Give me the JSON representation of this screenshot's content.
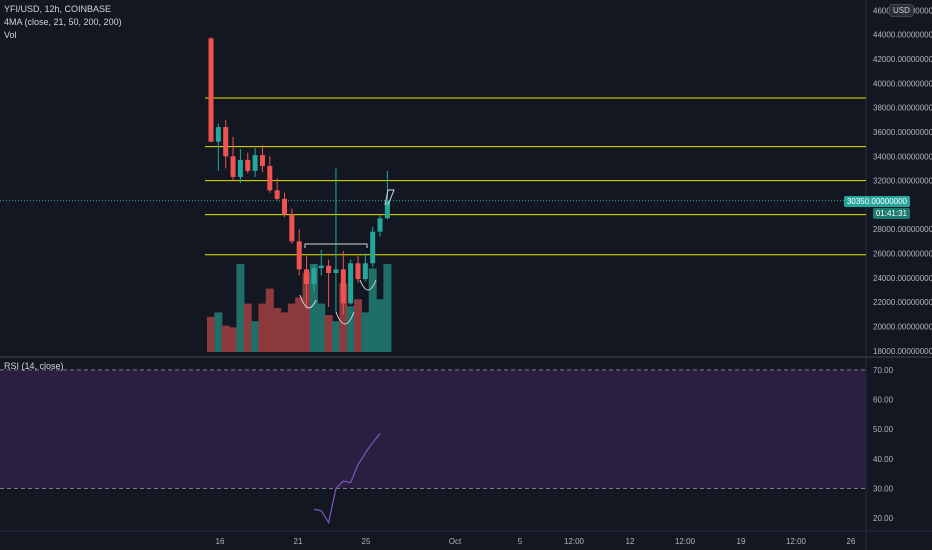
{
  "legend": {
    "symbol": "YFI/USD, 12h, COINBASE",
    "ma": "4MA (close, 21, 50, 200, 200)",
    "vol": "Vol"
  },
  "rsi_legend": "RSI (14, close)",
  "currency": "USD",
  "price_axis": {
    "ticks": [
      "46000.00000000",
      "44000.00000000",
      "42000.00000000",
      "40000.00000000",
      "38000.00000000",
      "36000.00000000",
      "34000.00000000",
      "32000.00000000",
      "28000.00000000",
      "26000.00000000",
      "24000.00000000",
      "22000.00000000",
      "20000.00000000",
      "18000.00000000"
    ],
    "tick_values": [
      46000,
      44000,
      42000,
      40000,
      38000,
      36000,
      34000,
      32000,
      28000,
      26000,
      24000,
      22000,
      20000,
      18000
    ],
    "range": [
      17900,
      46200
    ],
    "last_price": "30350.00000000",
    "last_value": 30350,
    "countdown": "01:41:31"
  },
  "rsi_axis": {
    "ticks": [
      "70.00",
      "60.00",
      "50.00",
      "40.00",
      "30.00",
      "20.00"
    ],
    "tick_values": [
      70,
      60,
      50,
      40,
      30,
      20
    ],
    "range": [
      16,
      72
    ],
    "upper": 70,
    "lower": 30
  },
  "time_axis": [
    "16",
    "21",
    "25",
    "Oct",
    "5",
    "12:00",
    "12",
    "12:00",
    "19",
    "12:00",
    "26"
  ],
  "horizontal_levels": [
    38800,
    34800,
    32000,
    29200,
    25900
  ],
  "colors": {
    "background": "#131722",
    "up": "#26a69a",
    "down": "#ef5350",
    "level": "#e6e600",
    "rsi_line": "#7e57c2",
    "rsi_band": "#2a1f3e",
    "last_price_tag": "#26a69a"
  },
  "chart_data": {
    "type": "candlestick",
    "candles": [
      {
        "o": 43700,
        "h": 43800,
        "l": 35200,
        "c": 35200,
        "v": 0.4
      },
      {
        "o": 35200,
        "h": 36700,
        "l": 32800,
        "c": 36400,
        "v": 0.45
      },
      {
        "o": 36400,
        "h": 37000,
        "l": 33000,
        "c": 34000,
        "v": 0.3
      },
      {
        "o": 34000,
        "h": 35600,
        "l": 32000,
        "c": 32300,
        "v": 0.28
      },
      {
        "o": 32300,
        "h": 34600,
        "l": 31800,
        "c": 33700,
        "v": 1.0
      },
      {
        "o": 33700,
        "h": 34300,
        "l": 32600,
        "c": 32800,
        "v": 0.55
      },
      {
        "o": 32800,
        "h": 34700,
        "l": 32300,
        "c": 34100,
        "v": 0.35
      },
      {
        "o": 34100,
        "h": 34900,
        "l": 32700,
        "c": 33200,
        "v": 0.55
      },
      {
        "o": 33200,
        "h": 34000,
        "l": 31000,
        "c": 31200,
        "v": 0.72
      },
      {
        "o": 31200,
        "h": 32200,
        "l": 30400,
        "c": 30500,
        "v": 0.5
      },
      {
        "o": 30500,
        "h": 31000,
        "l": 29000,
        "c": 29200,
        "v": 0.45
      },
      {
        "o": 29200,
        "h": 29700,
        "l": 26800,
        "c": 27000,
        "v": 0.55
      },
      {
        "o": 27000,
        "h": 28000,
        "l": 24200,
        "c": 24700,
        "v": 0.62
      },
      {
        "o": 24700,
        "h": 25800,
        "l": 21500,
        "c": 23500,
        "v": 0.9
      },
      {
        "o": 23500,
        "h": 25100,
        "l": 22800,
        "c": 24800,
        "v": 1.0
      },
      {
        "o": 24800,
        "h": 26300,
        "l": 24200,
        "c": 25000,
        "v": 0.55
      },
      {
        "o": 25000,
        "h": 25500,
        "l": 21600,
        "c": 24400,
        "v": 0.42
      },
      {
        "o": 24400,
        "h": 33000,
        "l": 21200,
        "c": 24700,
        "v": 0.35
      },
      {
        "o": 24700,
        "h": 26200,
        "l": 21000,
        "c": 21900,
        "v": 0.78
      },
      {
        "o": 21900,
        "h": 25500,
        "l": 21800,
        "c": 25200,
        "v": 0.52
      },
      {
        "o": 25200,
        "h": 25800,
        "l": 23600,
        "c": 23900,
        "v": 0.6
      },
      {
        "o": 23900,
        "h": 26000,
        "l": 23700,
        "c": 25200,
        "v": 0.45
      },
      {
        "o": 25200,
        "h": 28200,
        "l": 24900,
        "c": 27800,
        "v": 0.95
      },
      {
        "o": 27800,
        "h": 29200,
        "l": 27400,
        "c": 28900,
        "v": 0.6
      },
      {
        "o": 28900,
        "h": 32800,
        "l": 28800,
        "c": 30350,
        "v": 1.0
      }
    ],
    "rsi": [
      23,
      22.5,
      18.5,
      30,
      32.5,
      32,
      38,
      42,
      45.5,
      48.5
    ],
    "rsi_start_index": 14
  }
}
